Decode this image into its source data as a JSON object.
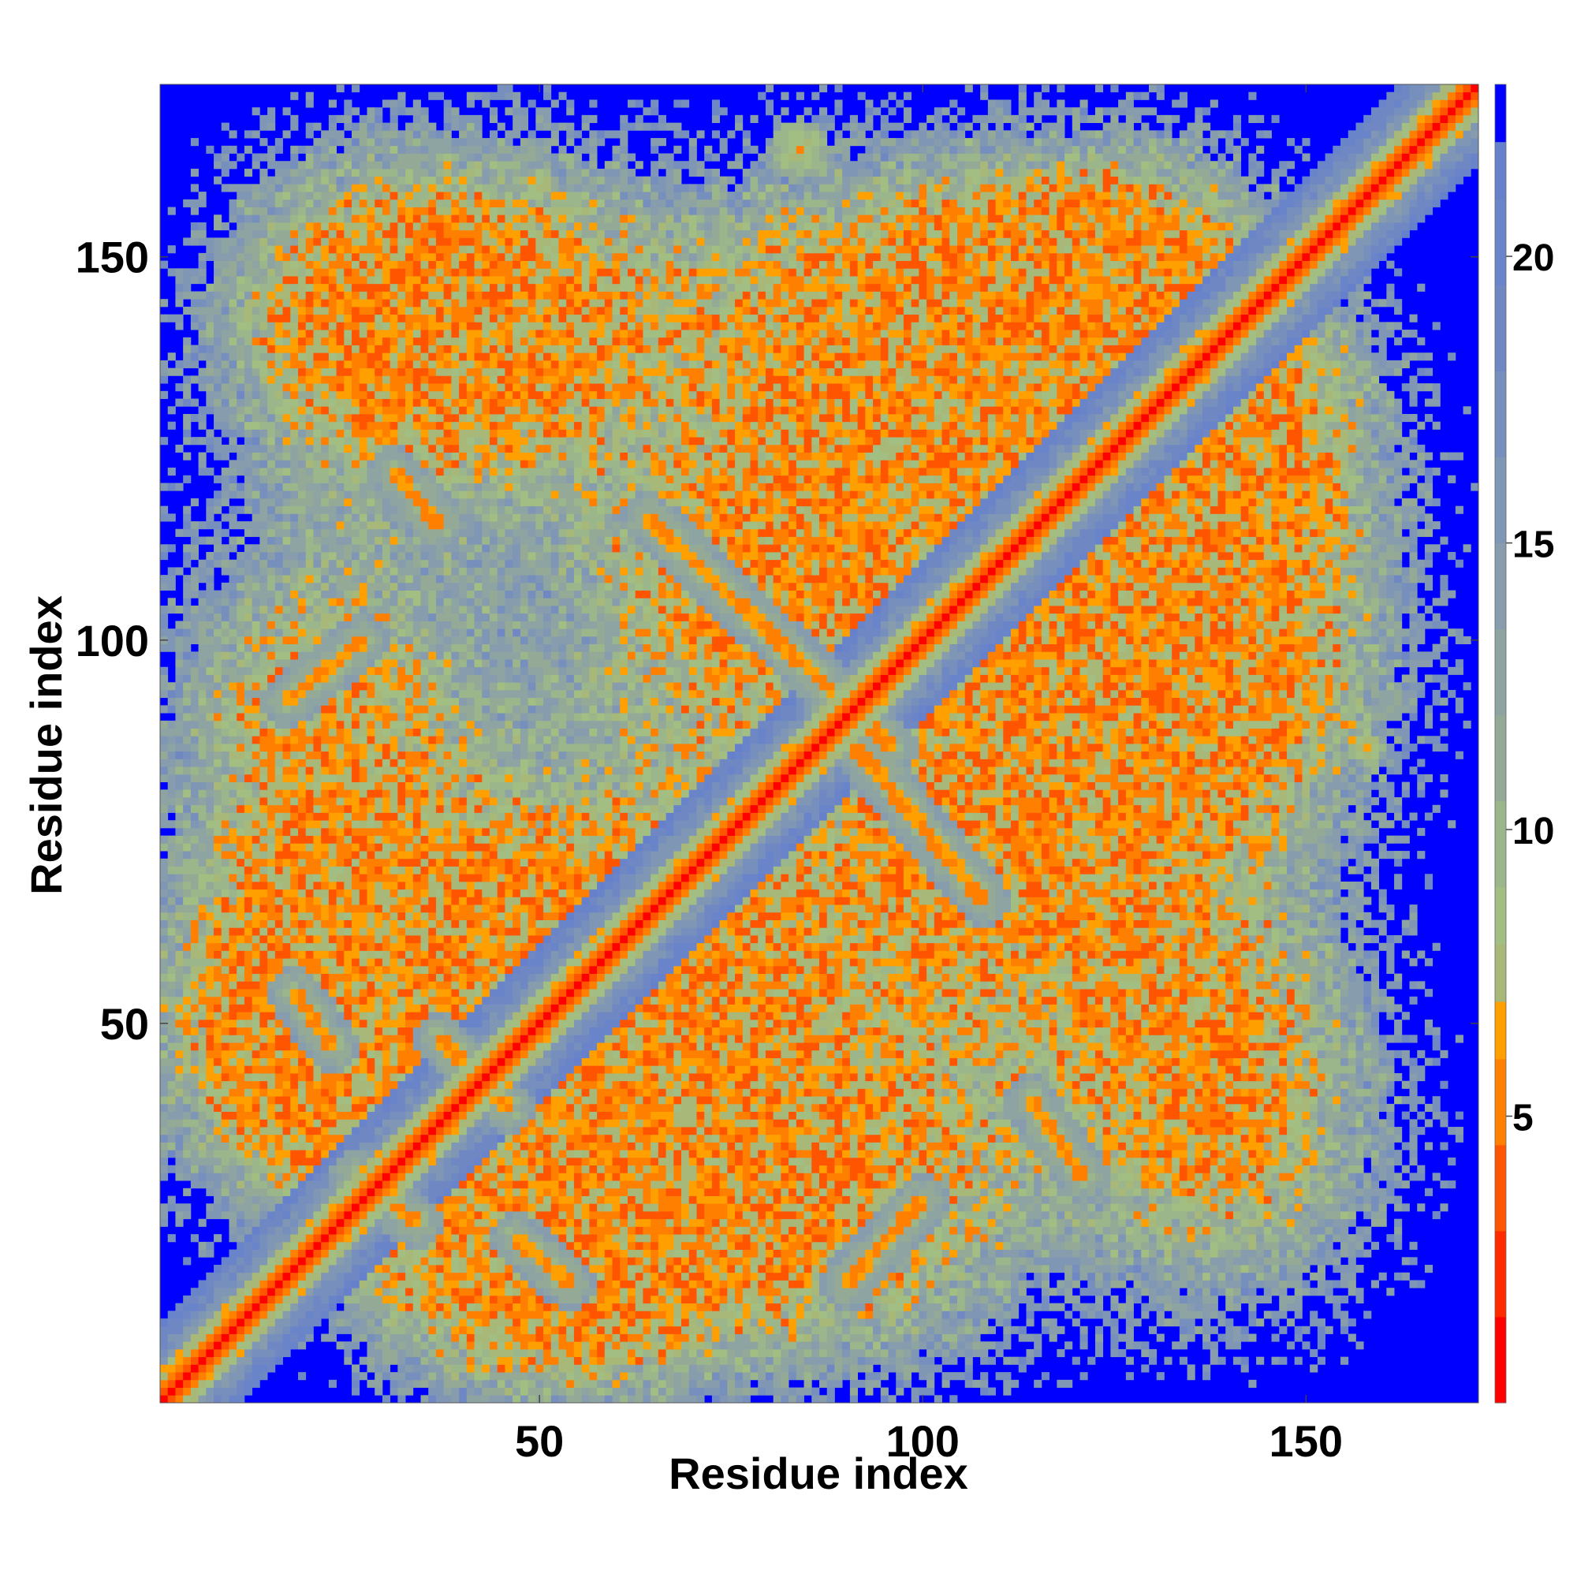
{
  "chart_data": {
    "type": "heatmap",
    "title": "",
    "xlabel": "Residue index",
    "ylabel": "Residue index",
    "n_residues": 172,
    "xlim": [
      0.5,
      172.5
    ],
    "ylim": [
      0.5,
      172.5
    ],
    "x_ticks": [
      50,
      100,
      150
    ],
    "y_ticks": [
      50,
      100,
      150
    ],
    "colorbar": {
      "ticks": [
        5,
        10,
        15,
        20
      ],
      "range": [
        0,
        23
      ],
      "colors": [
        {
          "upper": 1.5,
          "color": "#ff0000"
        },
        {
          "upper": 3.0,
          "color": "#ff2a00"
        },
        {
          "upper": 4.5,
          "color": "#ff5500"
        },
        {
          "upper": 6.0,
          "color": "#ff8000"
        },
        {
          "upper": 7.0,
          "color": "#ffa000"
        },
        {
          "upper": 8.0,
          "color": "#a8b878"
        },
        {
          "upper": 9.0,
          "color": "#a2be82"
        },
        {
          "upper": 10.5,
          "color": "#9cb68c"
        },
        {
          "upper": 12.0,
          "color": "#95aa96"
        },
        {
          "upper": 13.5,
          "color": "#8ea4a2"
        },
        {
          "upper": 15.0,
          "color": "#879cac"
        },
        {
          "upper": 16.5,
          "color": "#7f96b4"
        },
        {
          "upper": 18.0,
          "color": "#778fbc"
        },
        {
          "upper": 19.5,
          "color": "#6f88c4"
        },
        {
          "upper": 21.0,
          "color": "#6a84ca"
        },
        {
          "upper": 22.0,
          "color": "#6680cc"
        },
        {
          "upper": 23.0,
          "color": "#0000ff"
        }
      ]
    },
    "background_color": "#0000ff",
    "contact_features": [
      {
        "kind": "diagonal",
        "residue_range": [
          1,
          172
        ]
      },
      {
        "kind": "anti_parallel",
        "x_range": [
          64,
          96
        ],
        "y_range": [
          116,
          86
        ]
      },
      {
        "kind": "anti_parallel",
        "x_range": [
          88,
          108
        ],
        "y_range": [
          90,
          66
        ]
      },
      {
        "kind": "anti_parallel",
        "x_range": [
          17,
          27
        ],
        "y_range": [
          92,
          100
        ]
      },
      {
        "kind": "parallel",
        "x_range": [
          31,
          37
        ],
        "y_range": [
          122,
          115
        ]
      },
      {
        "kind": "anti_parallel",
        "x_range": [
          47,
          54
        ],
        "y_range": [
          22,
          16
        ]
      },
      {
        "kind": "anti_parallel",
        "x_range": [
          90,
          100
        ],
        "y_range": [
          16,
          27
        ]
      },
      {
        "kind": "anti_parallel",
        "x_range": [
          114,
          121
        ],
        "y_range": [
          40,
          30
        ]
      },
      {
        "kind": "anti_parallel",
        "x_range": [
          18,
          23
        ],
        "y_range": [
          54,
          47
        ]
      },
      {
        "kind": "anti_parallel",
        "x_range": [
          37,
          46
        ],
        "y_range": [
          48,
          39
        ]
      },
      {
        "kind": "anti_parallel",
        "x_range": [
          26,
          34
        ],
        "y_range": [
          30,
          24
        ]
      },
      {
        "kind": "cluster",
        "x": 84,
        "y": 164,
        "spread": 4
      },
      {
        "kind": "cluster",
        "x": 158,
        "y": 86,
        "spread": 2
      }
    ]
  }
}
